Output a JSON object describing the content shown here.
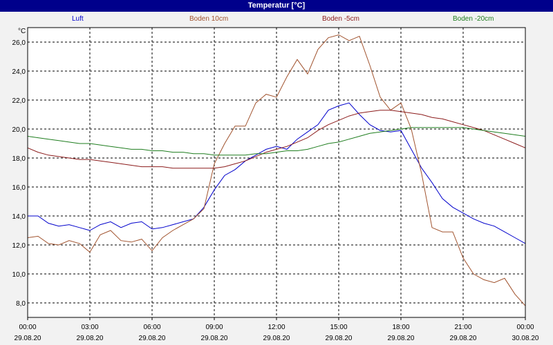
{
  "window": {
    "title": "Temperatur [°C]"
  },
  "colors": {
    "titlebar": "#00008b",
    "plot_bg": "#ffffff",
    "grid": "#000000"
  },
  "chart_data": {
    "type": "line",
    "title": "Temperatur [°C]",
    "ylabel": "°C",
    "xlabel": "",
    "ylim": [
      7.0,
      27.0
    ],
    "xlim": [
      "29.08.20 00:00",
      "30.08.20 00:00"
    ],
    "grid": true,
    "legend_position": "top",
    "y_ticks": [
      "8,0",
      "10,0",
      "12,0",
      "14,0",
      "16,0",
      "18,0",
      "20,0",
      "22,0",
      "24,0",
      "26,0"
    ],
    "x_ticks": [
      {
        "time": "00:00",
        "date": "29.08.20"
      },
      {
        "time": "03:00",
        "date": "29.08.20"
      },
      {
        "time": "06:00",
        "date": "29.08.20"
      },
      {
        "time": "09:00",
        "date": "29.08.20"
      },
      {
        "time": "12:00",
        "date": "29.08.20"
      },
      {
        "time": "15:00",
        "date": "29.08.20"
      },
      {
        "time": "18:00",
        "date": "29.08.20"
      },
      {
        "time": "21:00",
        "date": "29.08.20"
      },
      {
        "time": "00:00",
        "date": "30.08.20"
      }
    ],
    "x_hours": [
      0,
      0.5,
      1,
      1.5,
      2,
      2.5,
      3,
      3.5,
      4,
      4.5,
      5,
      5.5,
      6,
      6.5,
      7,
      7.5,
      8,
      8.5,
      9,
      9.5,
      10,
      10.5,
      11,
      11.5,
      12,
      12.5,
      13,
      13.5,
      14,
      14.5,
      15,
      15.5,
      16,
      16.5,
      17,
      17.5,
      18,
      18.5,
      19,
      19.5,
      20,
      20.5,
      21,
      21.5,
      22,
      22.5,
      23,
      23.5,
      24
    ],
    "series": [
      {
        "name": "Luft",
        "color": "#0000cc",
        "values": [
          14.0,
          14.0,
          13.5,
          13.3,
          13.4,
          13.2,
          13.0,
          13.4,
          13.6,
          13.2,
          13.5,
          13.6,
          13.1,
          13.2,
          13.4,
          13.6,
          13.8,
          14.6,
          15.8,
          16.8,
          17.2,
          17.8,
          18.2,
          18.6,
          18.8,
          18.6,
          19.3,
          19.8,
          20.3,
          21.3,
          21.6,
          21.8,
          21.0,
          20.3,
          19.9,
          19.8,
          19.9,
          18.6,
          17.3,
          16.3,
          15.2,
          14.6,
          14.2,
          13.8,
          13.5,
          13.3,
          12.9,
          12.5,
          12.1
        ]
      },
      {
        "name": "Boden 10cm",
        "color": "#a0522d",
        "values": [
          12.5,
          12.6,
          12.1,
          12.0,
          12.3,
          12.1,
          11.5,
          12.7,
          13.0,
          12.3,
          12.2,
          12.4,
          11.6,
          12.5,
          13.0,
          13.4,
          13.8,
          14.5,
          17.6,
          19.0,
          20.2,
          20.2,
          21.8,
          22.4,
          22.2,
          23.6,
          24.8,
          23.8,
          25.5,
          26.3,
          26.5,
          26.1,
          26.4,
          24.4,
          22.2,
          21.3,
          21.8,
          20.0,
          16.9,
          13.2,
          12.9,
          12.9,
          11.1,
          10.0,
          9.6,
          9.4,
          9.7,
          8.6,
          7.8
        ]
      },
      {
        "name": "Boden -5cm",
        "color": "#8b1a1a",
        "values": [
          18.7,
          18.4,
          18.2,
          18.1,
          18.0,
          17.9,
          17.9,
          17.8,
          17.7,
          17.6,
          17.5,
          17.4,
          17.4,
          17.4,
          17.3,
          17.3,
          17.3,
          17.3,
          17.3,
          17.4,
          17.6,
          17.8,
          18.1,
          18.4,
          18.6,
          18.8,
          19.1,
          19.4,
          19.9,
          20.3,
          20.6,
          20.9,
          21.1,
          21.2,
          21.3,
          21.3,
          21.2,
          21.1,
          21.0,
          20.8,
          20.7,
          20.5,
          20.3,
          20.1,
          19.9,
          19.6,
          19.3,
          19.0,
          18.7
        ]
      },
      {
        "name": "Boden -20cm",
        "color": "#1e7d1e",
        "values": [
          19.5,
          19.4,
          19.3,
          19.2,
          19.1,
          19.0,
          19.0,
          18.9,
          18.8,
          18.7,
          18.6,
          18.6,
          18.5,
          18.5,
          18.4,
          18.4,
          18.3,
          18.3,
          18.2,
          18.2,
          18.2,
          18.2,
          18.3,
          18.3,
          18.4,
          18.5,
          18.5,
          18.6,
          18.8,
          19.0,
          19.1,
          19.3,
          19.5,
          19.7,
          19.8,
          19.9,
          20.0,
          20.1,
          20.1,
          20.1,
          20.1,
          20.1,
          20.1,
          20.0,
          19.9,
          19.8,
          19.7,
          19.6,
          19.5
        ]
      }
    ]
  }
}
